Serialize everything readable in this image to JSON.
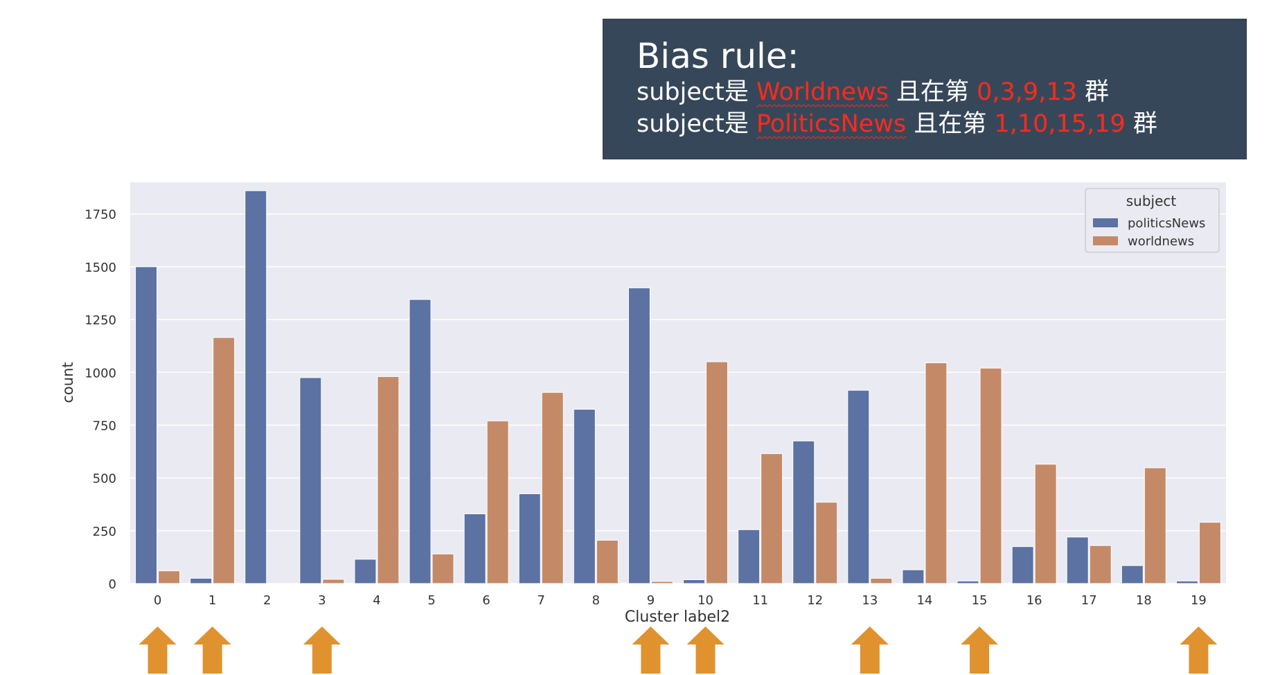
{
  "annotation": {
    "title": "Bias rule:",
    "line1": {
      "prefix": "subject是 ",
      "subject": "Worldnews",
      "middle": " 且在第 ",
      "clusters": "0,3,9,13",
      "suffix": " 群"
    },
    "line2": {
      "prefix": "subject是 ",
      "subject": "PoliticsNews",
      "middle": " 且在第 ",
      "clusters": "1,10,15,19",
      "suffix": " 群"
    }
  },
  "colors": {
    "politicsNews": "#5b72a2",
    "worldnews": "#c48a67",
    "plot_bg": "#eaeaf2",
    "arrow": "#e0922f",
    "annotation_bg": "#37475a",
    "highlight_text": "#ff2a1a"
  },
  "chart_data": {
    "type": "bar",
    "xlabel": "Cluster label2",
    "ylabel": "count",
    "categories": [
      "0",
      "1",
      "2",
      "3",
      "4",
      "5",
      "6",
      "7",
      "8",
      "9",
      "10",
      "11",
      "12",
      "13",
      "14",
      "15",
      "16",
      "17",
      "18",
      "19"
    ],
    "yticks": [
      "0",
      "250",
      "500",
      "750",
      "1000",
      "1250",
      "1500",
      "1750"
    ],
    "ylim": [
      0,
      1900
    ],
    "grid": true,
    "legend": {
      "title": "subject",
      "position": "top-right"
    },
    "series": [
      {
        "name": "politicsNews",
        "values": [
          1500,
          25,
          1860,
          975,
          115,
          1345,
          330,
          425,
          825,
          1400,
          18,
          255,
          675,
          915,
          65,
          12,
          175,
          220,
          85,
          12
        ]
      },
      {
        "name": "worldnews",
        "values": [
          60,
          1165,
          0,
          20,
          980,
          140,
          770,
          905,
          205,
          10,
          1050,
          615,
          385,
          25,
          1045,
          1020,
          565,
          180,
          548,
          290
        ]
      }
    ],
    "arrow_markers": [
      "0",
      "1",
      "3",
      "9",
      "10",
      "13",
      "15",
      "19"
    ]
  }
}
